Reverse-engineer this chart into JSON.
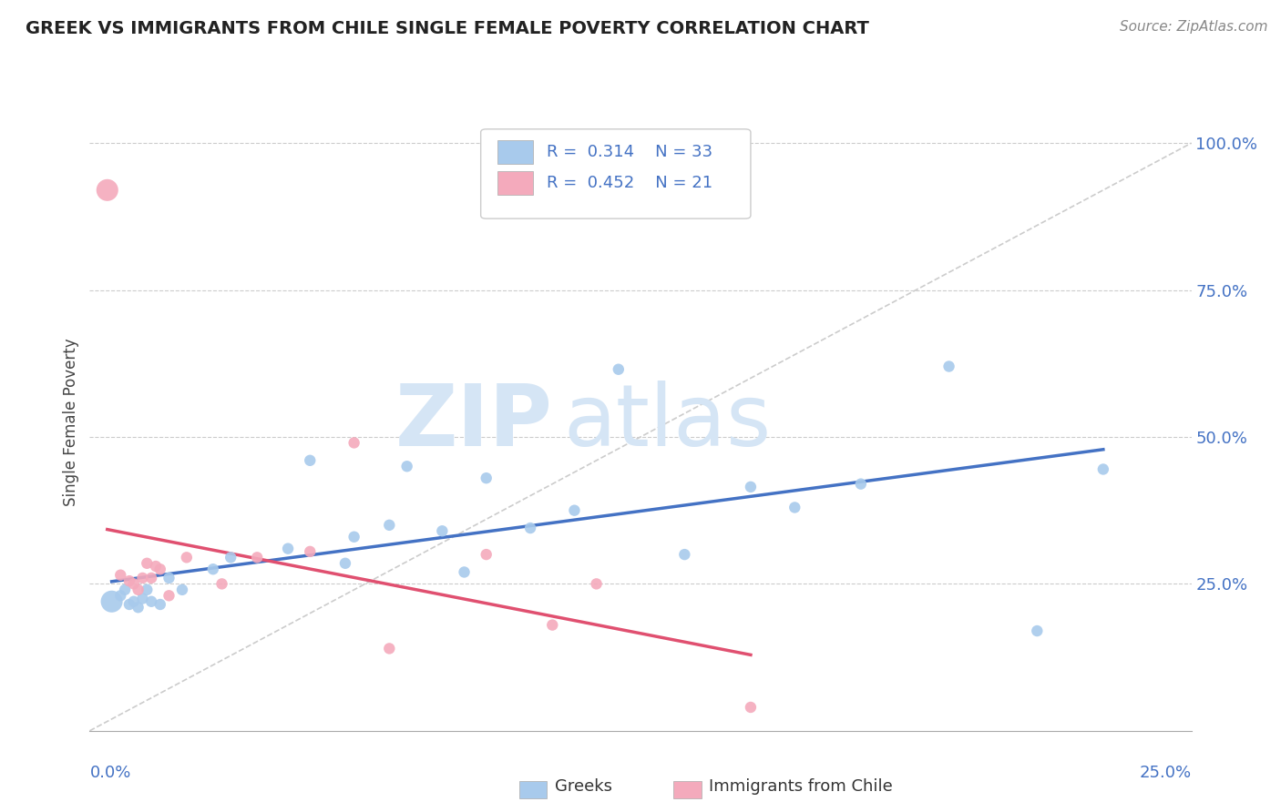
{
  "title": "GREEK VS IMMIGRANTS FROM CHILE SINGLE FEMALE POVERTY CORRELATION CHART",
  "source": "Source: ZipAtlas.com",
  "ylabel": "Single Female Poverty",
  "xlim": [
    0,
    0.25
  ],
  "ylim": [
    0,
    1.05
  ],
  "legend_label1": "Greeks",
  "legend_label2": "Immigrants from Chile",
  "R1": "0.314",
  "N1": "33",
  "R2": "0.452",
  "N2": "21",
  "blue_color": "#A8CAEC",
  "pink_color": "#F4AABC",
  "blue_line_color": "#4472C4",
  "pink_line_color": "#E05070",
  "diagonal_line_color": "#CCCCCC",
  "watermark_color": "#D5E5F5",
  "background_color": "#FFFFFF",
  "greeks_x": [
    0.005,
    0.007,
    0.008,
    0.009,
    0.01,
    0.011,
    0.012,
    0.013,
    0.014,
    0.016,
    0.018,
    0.021,
    0.028,
    0.032,
    0.045,
    0.05,
    0.058,
    0.06,
    0.068,
    0.072,
    0.08,
    0.085,
    0.09,
    0.1,
    0.11,
    0.12,
    0.135,
    0.15,
    0.16,
    0.175,
    0.195,
    0.215,
    0.23
  ],
  "greeks_y": [
    0.22,
    0.23,
    0.24,
    0.215,
    0.22,
    0.21,
    0.225,
    0.24,
    0.22,
    0.215,
    0.26,
    0.24,
    0.275,
    0.295,
    0.31,
    0.46,
    0.285,
    0.33,
    0.35,
    0.45,
    0.34,
    0.27,
    0.43,
    0.345,
    0.375,
    0.615,
    0.3,
    0.415,
    0.38,
    0.42,
    0.62,
    0.17,
    0.445
  ],
  "greeks_sizes": [
    300,
    80,
    80,
    80,
    80,
    80,
    80,
    80,
    80,
    80,
    80,
    80,
    80,
    80,
    80,
    80,
    80,
    80,
    80,
    80,
    80,
    80,
    80,
    80,
    80,
    80,
    80,
    80,
    80,
    80,
    80,
    80,
    80
  ],
  "chile_x": [
    0.004,
    0.007,
    0.009,
    0.01,
    0.011,
    0.012,
    0.013,
    0.014,
    0.015,
    0.016,
    0.018,
    0.022,
    0.03,
    0.038,
    0.05,
    0.06,
    0.068,
    0.09,
    0.105,
    0.115,
    0.15
  ],
  "chile_y": [
    0.92,
    0.265,
    0.255,
    0.25,
    0.24,
    0.26,
    0.285,
    0.26,
    0.28,
    0.275,
    0.23,
    0.295,
    0.25,
    0.295,
    0.305,
    0.49,
    0.14,
    0.3,
    0.18,
    0.25,
    0.04
  ],
  "chile_sizes": [
    300,
    80,
    80,
    80,
    80,
    80,
    80,
    80,
    80,
    80,
    80,
    80,
    80,
    80,
    80,
    80,
    80,
    80,
    80,
    80,
    80
  ]
}
